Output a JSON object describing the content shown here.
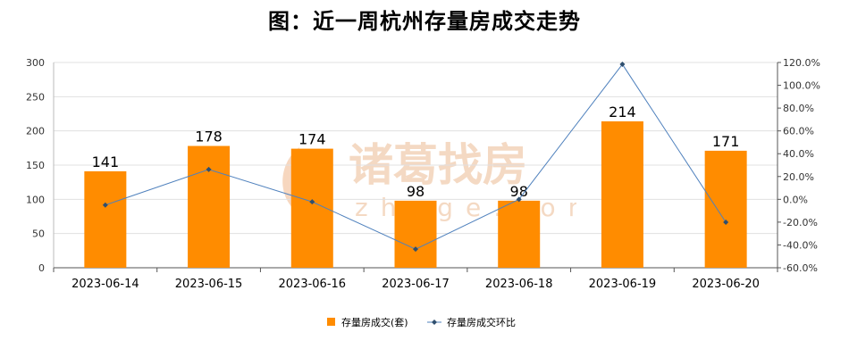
{
  "watermark": {
    "brand": "诸葛找房",
    "site": "zhuge.com"
  },
  "chart_data": {
    "type": "bar",
    "title": "图：近一周杭州存量房成交走势",
    "categories": [
      "2023-06-14",
      "2023-06-15",
      "2023-06-16",
      "2023-06-17",
      "2023-06-18",
      "2023-06-19",
      "2023-06-20"
    ],
    "series": [
      {
        "name": "存量房成交(套)",
        "type": "bar",
        "axis": "left",
        "color": "#ff8c00",
        "values": [
          141,
          178,
          174,
          98,
          98,
          214,
          171
        ]
      },
      {
        "name": "存量房成交环比",
        "type": "line",
        "axis": "right",
        "color": "#4f81bd",
        "values": [
          -5.0,
          26.2,
          -2.2,
          -43.7,
          0.0,
          118.4,
          -20.1
        ]
      }
    ],
    "data_labels": [
      "141",
      "178",
      "174",
      "98",
      "98",
      "214",
      "171"
    ],
    "y_left": {
      "min": 0,
      "max": 300,
      "ticks": [
        "0",
        "50",
        "100",
        "150",
        "200",
        "250",
        "300"
      ]
    },
    "y_right": {
      "min": -60,
      "max": 120,
      "ticks": [
        "-60.0%",
        "-40.0%",
        "-20.0%",
        "0.0%",
        "20.0%",
        "40.0%",
        "60.0%",
        "80.0%",
        "100.0%",
        "120.0%"
      ]
    },
    "grid": true,
    "legend_position": "bottom"
  }
}
